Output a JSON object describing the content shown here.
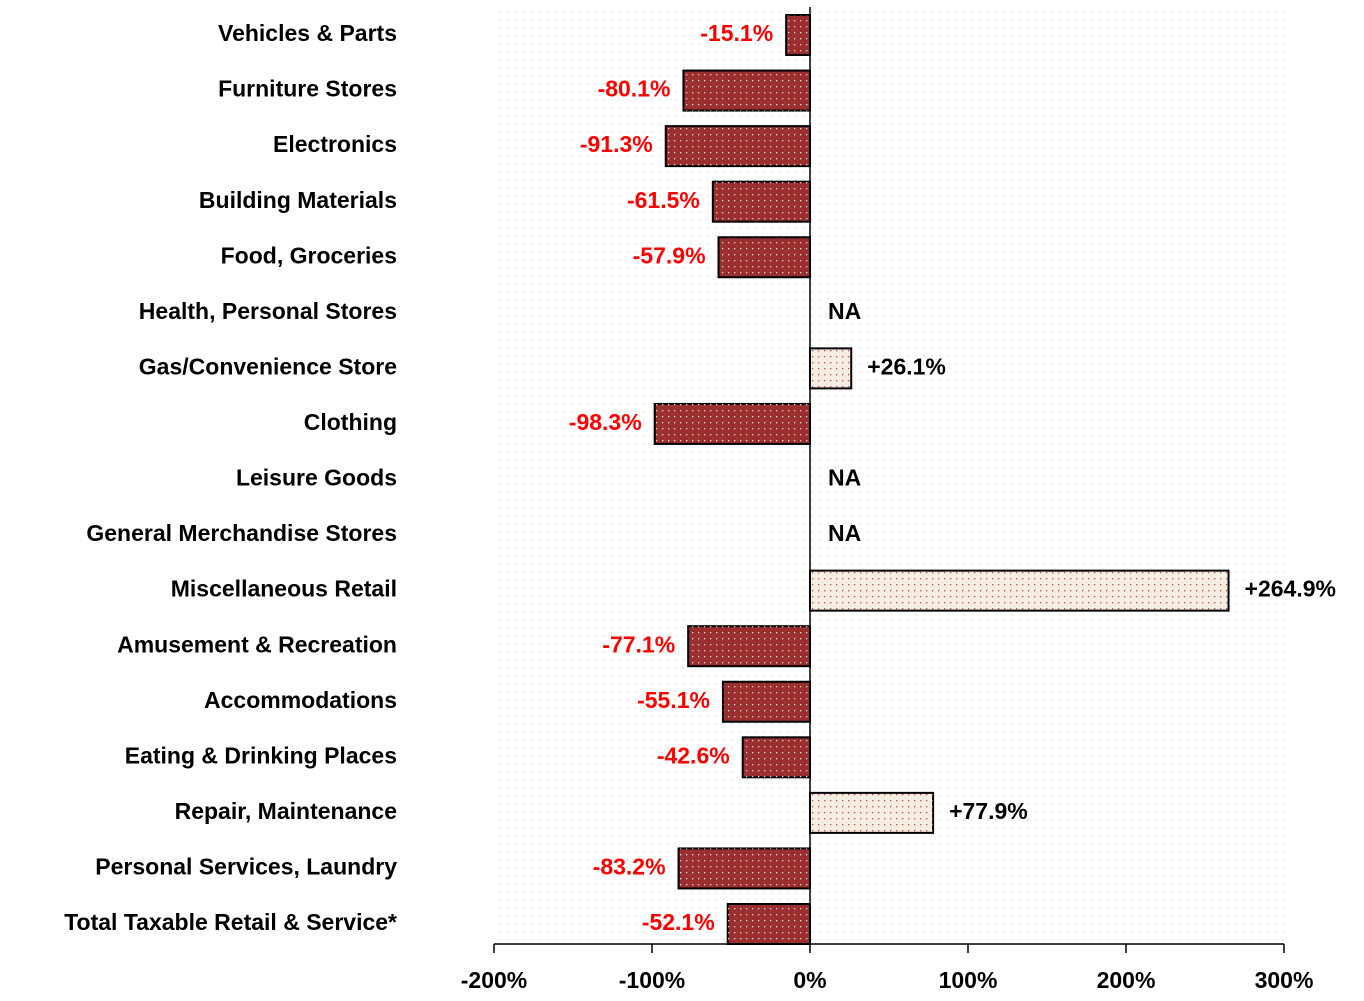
{
  "chart_data": {
    "type": "bar",
    "orientation": "horizontal",
    "categories": [
      "Vehicles & Parts",
      "Furniture Stores",
      "Electronics",
      "Building Materials",
      "Food, Groceries",
      "Health, Personal Stores",
      "Gas/Convenience Store",
      "Clothing",
      "Leisure Goods",
      "General Merchandise Stores",
      "Miscellaneous Retail",
      "Amusement & Recreation",
      "Accommodations",
      "Eating & Drinking Places",
      "Repair, Maintenance",
      "Personal Services, Laundry",
      "Total Taxable Retail & Service*"
    ],
    "values": [
      -15.1,
      -80.1,
      -91.3,
      -61.5,
      -57.9,
      null,
      26.1,
      -98.3,
      null,
      null,
      264.9,
      -77.1,
      -55.1,
      -42.6,
      77.9,
      -83.2,
      -52.1
    ],
    "value_labels": [
      "-15.1%",
      "-80.1%",
      "-91.3%",
      "-61.5%",
      "-57.9%",
      "NA",
      "+26.1%",
      "-98.3%",
      "NA",
      "NA",
      "+264.9%",
      "-77.1%",
      "-55.1%",
      "-42.6%",
      "+77.9%",
      "-83.2%",
      "-52.1%"
    ],
    "negative_color": "#9b2f2f",
    "positive_color": "#f6ede2",
    "negative_label_color": "#ff0000",
    "positive_label_color": "#000000",
    "xlim": [
      -200,
      300
    ],
    "xticks": [
      {
        "value": -200,
        "label": "-200%"
      },
      {
        "value": -100,
        "label": "-100%"
      },
      {
        "value": 0,
        "label": "0%"
      },
      {
        "value": 100,
        "label": "100%"
      },
      {
        "value": 200,
        "label": "200%"
      },
      {
        "value": 300,
        "label": "300%"
      }
    ]
  }
}
